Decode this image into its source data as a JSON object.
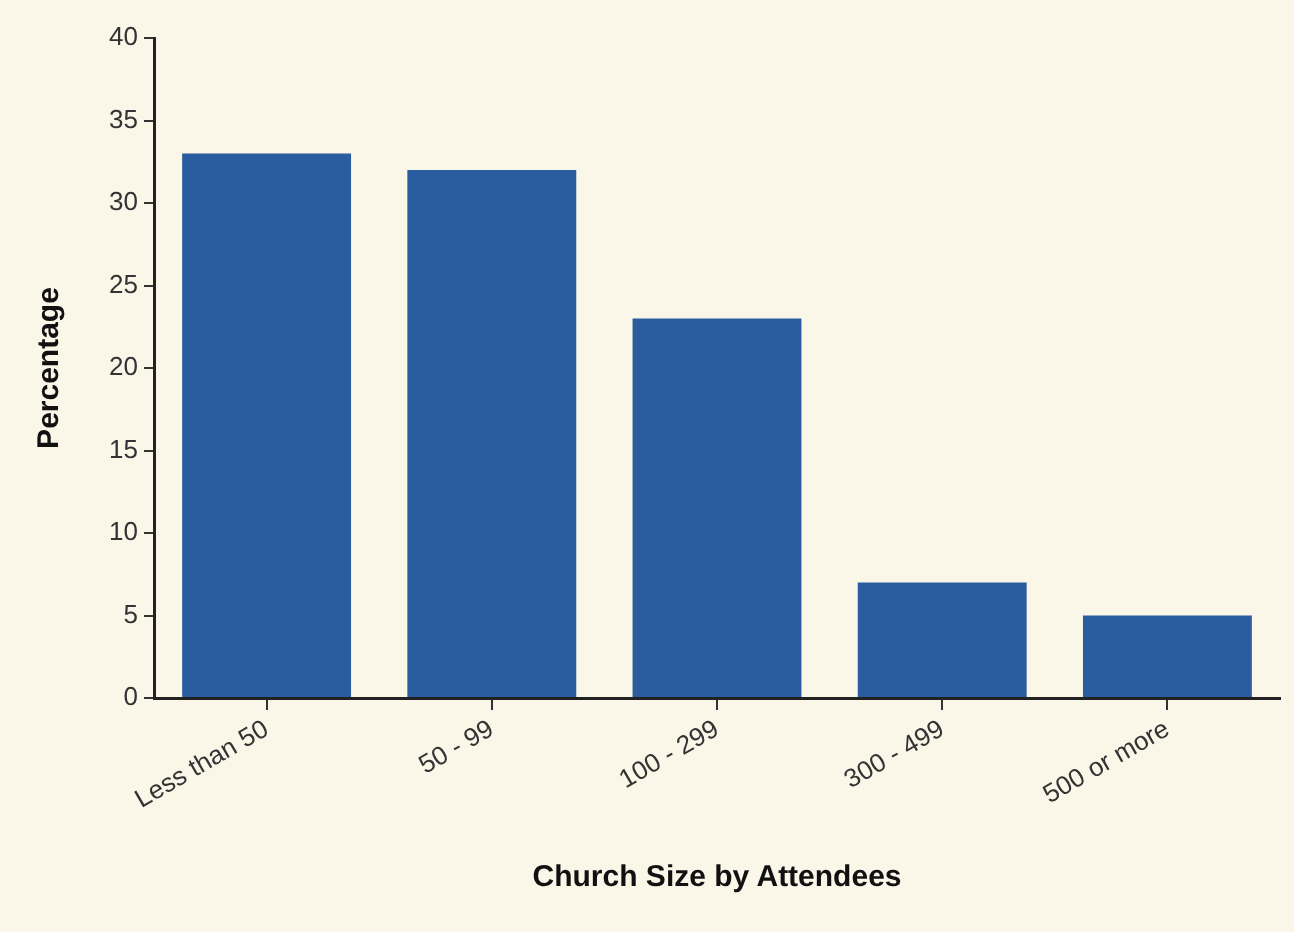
{
  "chart_data": {
    "type": "bar",
    "xlabel": "Church Size by Attendees",
    "ylabel": "Percentage",
    "categories": [
      "Less than 50",
      "50 - 99",
      "100 - 299",
      "300 - 499",
      "500 or more"
    ],
    "values": [
      33,
      32,
      23,
      7,
      5
    ],
    "color": "#2a5ca0",
    "ylim": [
      0,
      40
    ],
    "yticks": [
      0,
      5,
      10,
      15,
      20,
      25,
      30,
      35,
      40
    ],
    "grid": false,
    "legend": false
  }
}
